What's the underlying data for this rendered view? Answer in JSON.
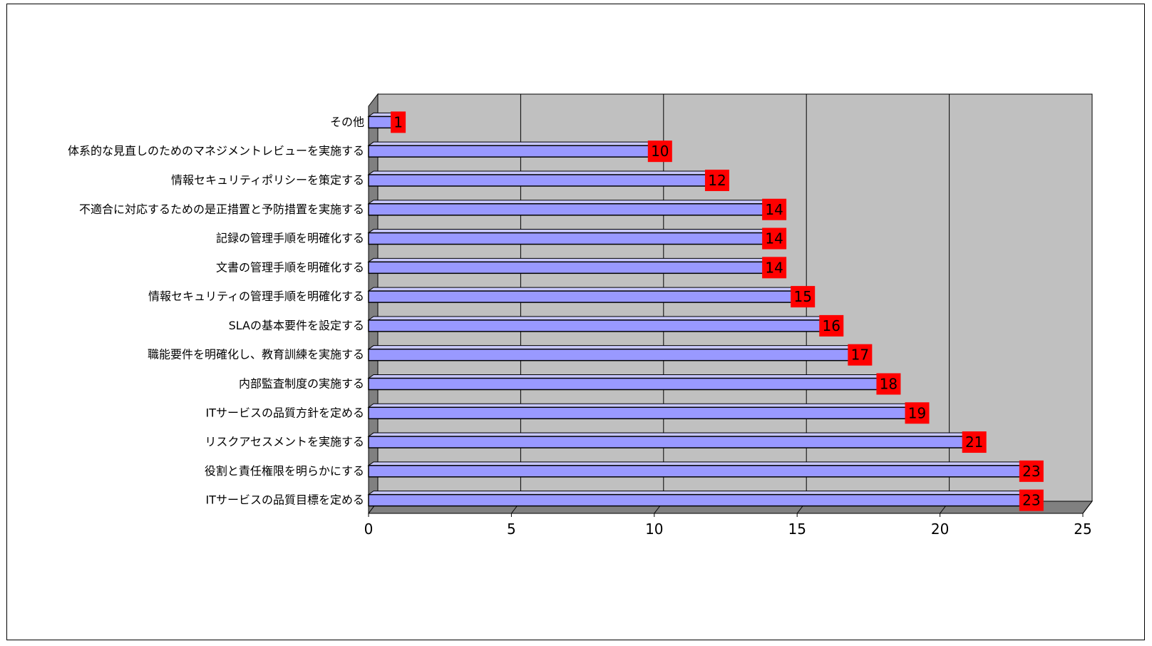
{
  "chart_data": {
    "type": "bar",
    "orientation": "horizontal",
    "style": "3d",
    "title": "",
    "xlabel": "",
    "ylabel": "",
    "categories": [
      "その他",
      "体系的な見直しのためのマネジメントレビューを実施する",
      "情報セキュリティポリシーを策定する",
      "不適合に対応するための是正措置と予防措置を実施する",
      "記録の管理手順を明確化する",
      "文書の管理手順を明確化する",
      "情報セキュリティの管理手順を明確化する",
      "SLAの基本要件を設定する",
      "職能要件を明確化し、教育訓練を実施する",
      "内部監査制度の実施する",
      "ITサービスの品質方針を定める",
      "リスクアセスメントを実施する",
      "役割と責任権限を明らかにする",
      "ITサービスの品質目標を定める"
    ],
    "values": [
      1,
      10,
      12,
      14,
      14,
      14,
      15,
      16,
      17,
      18,
      19,
      21,
      23,
      23
    ],
    "data_labels": [
      "1",
      "10",
      "12",
      "14",
      "14",
      "14",
      "15",
      "16",
      "17",
      "18",
      "19",
      "21",
      "23",
      "23"
    ],
    "xlim": [
      0,
      25
    ],
    "x_ticks": [
      0,
      5,
      10,
      15,
      20,
      25
    ],
    "x_tick_labels": [
      "0",
      "5",
      "10",
      "15",
      "20",
      "25"
    ],
    "grid": true,
    "legend": "none",
    "colors": {
      "bar_front": "#9999ff",
      "bar_top": "#c8c8ff",
      "bar_side": "#4d4d99",
      "plot_background": "#c0c0c0",
      "floor": "#808080",
      "label_box": "#ff0000"
    }
  }
}
